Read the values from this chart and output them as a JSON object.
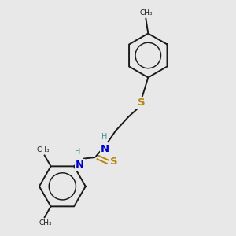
{
  "background_color": "#e8e8e8",
  "bond_color": "#1a1a1a",
  "S_color": "#b8860b",
  "N_color": "#0000cc",
  "H_color": "#4a9090",
  "line_width": 1.4,
  "figsize": [
    3.0,
    3.0
  ],
  "dpi": 100,
  "xlim": [
    0,
    10
  ],
  "ylim": [
    0,
    10
  ]
}
